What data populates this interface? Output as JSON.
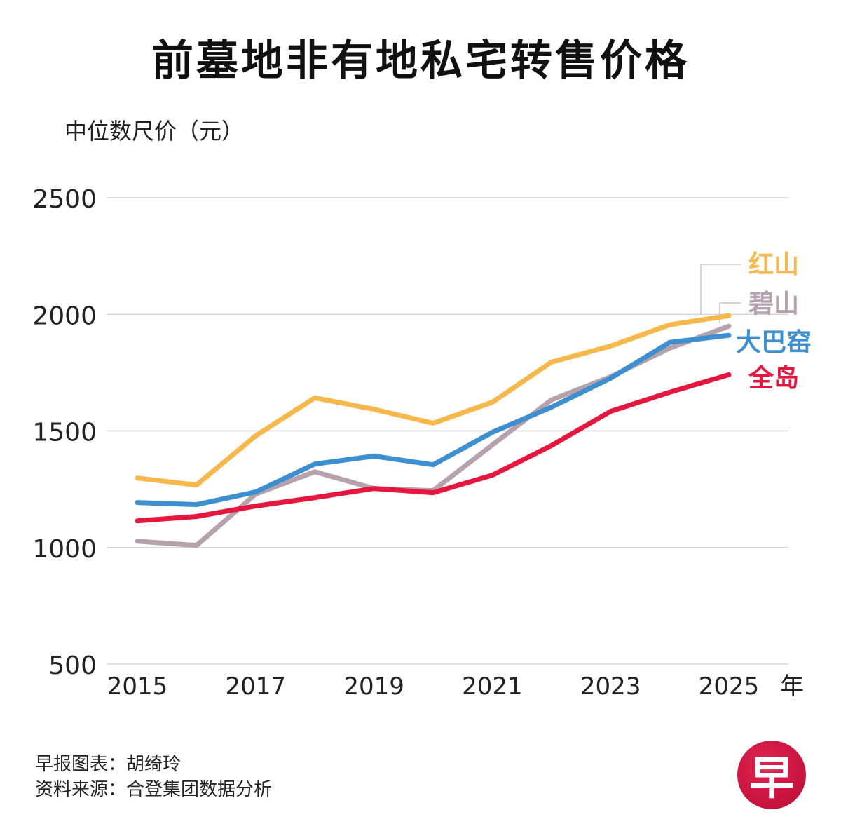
{
  "header": {
    "title": "前墓地非有地私宅转售价格",
    "y_unit_label": "中位数尺价（元）"
  },
  "footer": {
    "credit": "早报图表：胡绮玲",
    "source": "资料来源：合登集团数据分析"
  },
  "logo": {
    "glyph": "早",
    "color": "#d01442"
  },
  "chart_data": {
    "type": "line",
    "title": "前墓地非有地私宅转售价格",
    "xlabel": "年",
    "ylabel": "中位数尺价（元）",
    "x": [
      2015,
      2016,
      2017,
      2018,
      2019,
      2020,
      2021,
      2022,
      2023,
      2024,
      2025
    ],
    "x_tick_labels": [
      "2015",
      "2017",
      "2019",
      "2021",
      "2023",
      "2025"
    ],
    "x_tick_values": [
      2015,
      2017,
      2019,
      2021,
      2023,
      2025
    ],
    "y_tick_labels": [
      "500",
      "1000",
      "1500",
      "2000",
      "2500"
    ],
    "y_tick_values": [
      500,
      1000,
      1500,
      2000,
      2500
    ],
    "ylim": [
      500,
      2500
    ],
    "xlim": [
      2015,
      2025
    ],
    "grid": "horizontal",
    "legend": "right (end-of-line labels)",
    "series": [
      {
        "name": "红山",
        "color": "#f7b84b",
        "values": [
          1298,
          1268,
          1479,
          1642,
          1593,
          1533,
          1623,
          1795,
          1864,
          1955,
          1994
        ]
      },
      {
        "name": "碧山",
        "color": "#b5a2ad",
        "values": [
          1027,
          1009,
          1229,
          1325,
          1253,
          1244,
          1440,
          1633,
          1732,
          1855,
          1949
        ]
      },
      {
        "name": "大巴窑",
        "color": "#3d8fcf",
        "values": [
          1193,
          1184,
          1238,
          1358,
          1392,
          1355,
          1494,
          1602,
          1726,
          1880,
          1910
        ]
      },
      {
        "name": "全岛",
        "color": "#e5173f",
        "values": [
          1114,
          1133,
          1178,
          1214,
          1253,
          1235,
          1310,
          1437,
          1584,
          1666,
          1741
        ]
      }
    ]
  }
}
